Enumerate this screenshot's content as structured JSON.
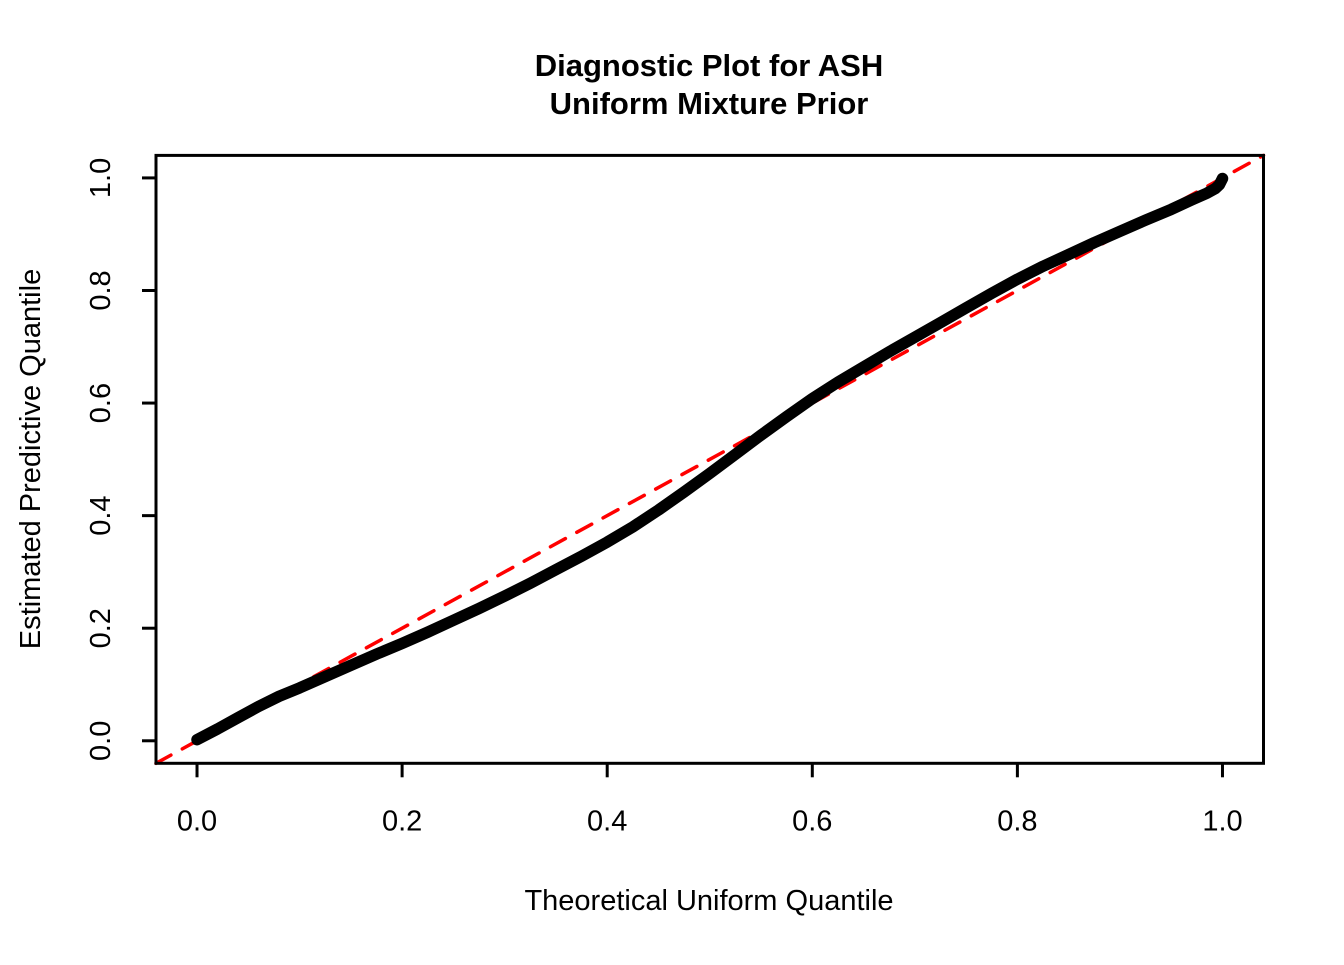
{
  "figure": {
    "background_color": "#ffffff",
    "title_line1": "Diagnostic Plot for ASH",
    "title_line2": "Uniform Mixture Prior"
  },
  "chart_data": {
    "type": "line",
    "title": "Diagnostic Plot for ASH",
    "subtitle": "Uniform Mixture Prior",
    "xlabel": "Theoretical Uniform Quantile",
    "ylabel": "Estimated Predictive Quantile",
    "xlim": [
      0,
      1
    ],
    "ylim": [
      0,
      1
    ],
    "axis_padding_fraction": 0.04,
    "grid": false,
    "legend": "none",
    "x_ticks": {
      "values": [
        0.0,
        0.2,
        0.4,
        0.6,
        0.8,
        1.0
      ],
      "labels": [
        "0.0",
        "0.2",
        "0.4",
        "0.6",
        "0.8",
        "1.0"
      ]
    },
    "y_ticks": {
      "values": [
        0.0,
        0.2,
        0.4,
        0.6,
        0.8,
        1.0
      ],
      "labels": [
        "0.0",
        "0.2",
        "0.4",
        "0.6",
        "0.8",
        "1.0"
      ]
    },
    "series": [
      {
        "name": "estimated-predictive-quantile-curve",
        "type": "line",
        "color": "#000000",
        "line_style": "solid",
        "line_width": 11.5,
        "x": [
          0.0,
          0.02,
          0.04,
          0.06,
          0.08,
          0.1,
          0.125,
          0.15,
          0.175,
          0.2,
          0.225,
          0.25,
          0.275,
          0.3,
          0.325,
          0.35,
          0.375,
          0.4,
          0.425,
          0.45,
          0.475,
          0.5,
          0.525,
          0.55,
          0.575,
          0.6,
          0.625,
          0.65,
          0.675,
          0.7,
          0.725,
          0.75,
          0.775,
          0.8,
          0.825,
          0.85,
          0.875,
          0.9,
          0.925,
          0.95,
          0.97,
          0.985,
          0.993,
          0.997,
          1.0
        ],
        "y": [
          0.002,
          0.021,
          0.041,
          0.061,
          0.079,
          0.094,
          0.114,
          0.134,
          0.154,
          0.173,
          0.193,
          0.214,
          0.235,
          0.257,
          0.28,
          0.304,
          0.328,
          0.353,
          0.38,
          0.41,
          0.442,
          0.475,
          0.509,
          0.543,
          0.576,
          0.608,
          0.637,
          0.664,
          0.691,
          0.717,
          0.743,
          0.769,
          0.795,
          0.82,
          0.843,
          0.864,
          0.885,
          0.905,
          0.925,
          0.944,
          0.961,
          0.973,
          0.981,
          0.988,
          0.999
        ]
      },
      {
        "name": "reference-diagonal-line",
        "type": "line",
        "color": "#FF0000",
        "line_style": "dashed",
        "line_width": 3.5,
        "x": [
          -0.04,
          1.04
        ],
        "y": [
          -0.04,
          1.04
        ]
      }
    ],
    "colors": {
      "curve": "#000000",
      "reference_line": "#FF0000",
      "axis": "#000000",
      "background": "#ffffff"
    }
  }
}
